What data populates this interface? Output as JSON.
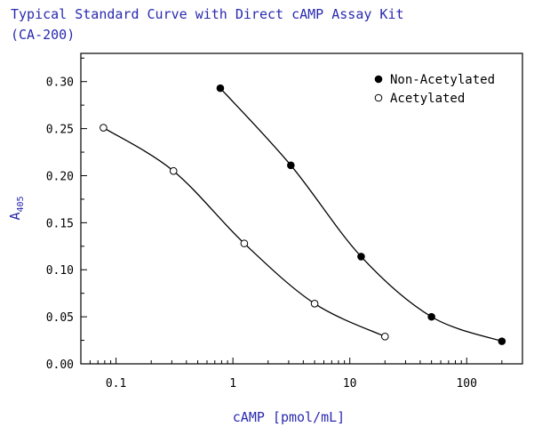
{
  "chart_data": {
    "type": "line",
    "title_line1": "Typical Standard Curve with Direct cAMP Assay Kit",
    "title_line2": "(CA-200)",
    "xlabel": "cAMP [pmol/mL]",
    "ylabel_main": "A",
    "ylabel_sub": "405",
    "x_scale": "log",
    "xlim": [
      0.05,
      300
    ],
    "ylim": [
      0,
      0.33
    ],
    "x_ticks": [
      0.1,
      1,
      10,
      100
    ],
    "x_tick_labels": [
      "0.1",
      "1",
      "10",
      "100"
    ],
    "y_ticks": [
      0,
      0.05,
      0.1,
      0.15,
      0.2,
      0.25,
      0.3
    ],
    "y_tick_labels": [
      "0.00",
      "0.05",
      "0.10",
      "0.15",
      "0.20",
      "0.25",
      "0.30"
    ],
    "grid": false,
    "legend_position": "top-right",
    "series": [
      {
        "name": "Non-Acetylated",
        "marker": "filled-circle",
        "color": "#000000",
        "x": [
          0.78,
          3.13,
          12.5,
          50,
          200
        ],
        "y": [
          0.293,
          0.211,
          0.114,
          0.05,
          0.024
        ]
      },
      {
        "name": "Acetylated",
        "marker": "open-circle",
        "color": "#000000",
        "x": [
          0.078,
          0.31,
          1.25,
          5,
          20
        ],
        "y": [
          0.251,
          0.205,
          0.128,
          0.064,
          0.029
        ]
      }
    ],
    "colors": {
      "title": "#2a2ab0",
      "axis_label": "#2a2ab0",
      "tick_label": "#000000",
      "axis": "#000000"
    }
  }
}
